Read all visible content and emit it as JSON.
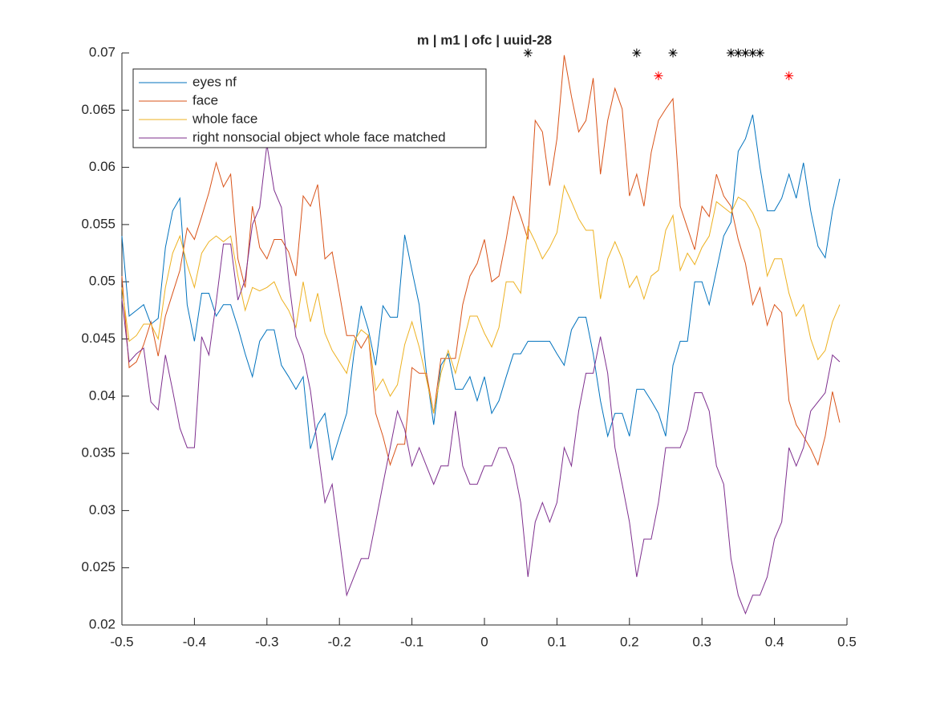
{
  "chart_data": {
    "type": "line",
    "title": "m | m1 | ofc | uuid-28",
    "x": [
      -0.5,
      -0.49,
      -0.48,
      -0.47,
      -0.46,
      -0.45,
      -0.44,
      -0.43,
      -0.42,
      -0.41,
      -0.4,
      -0.39,
      -0.38,
      -0.37,
      -0.36,
      -0.35,
      -0.34,
      -0.33,
      -0.32,
      -0.31,
      -0.3,
      -0.29,
      -0.28,
      -0.27,
      -0.26,
      -0.25,
      -0.24,
      -0.23,
      -0.22,
      -0.21,
      -0.2,
      -0.19,
      -0.18,
      -0.17,
      -0.16,
      -0.15,
      -0.14,
      -0.13,
      -0.12,
      -0.11,
      -0.1,
      -0.09,
      -0.08,
      -0.07,
      -0.06,
      -0.05,
      -0.04,
      -0.03,
      -0.02,
      -0.01,
      0,
      0.01,
      0.02,
      0.03,
      0.04,
      0.05,
      0.06,
      0.07,
      0.08,
      0.09,
      0.1,
      0.11,
      0.12,
      0.13,
      0.14,
      0.15,
      0.16,
      0.17,
      0.18,
      0.19,
      0.2,
      0.21,
      0.22,
      0.23,
      0.24,
      0.25,
      0.26,
      0.27,
      0.28,
      0.29,
      0.3,
      0.31,
      0.32,
      0.33,
      0.34,
      0.35,
      0.36,
      0.37,
      0.38,
      0.39,
      0.4,
      0.41,
      0.42,
      0.43,
      0.44,
      0.45,
      0.46,
      0.47,
      0.48,
      0.49
    ],
    "series": [
      {
        "name": "eyes nf",
        "color": "#0072bd",
        "values": [
          0.054,
          0.047,
          0.0475,
          0.048,
          0.0463,
          0.0468,
          0.053,
          0.0562,
          0.0573,
          0.048,
          0.0448,
          0.049,
          0.049,
          0.047,
          0.048,
          0.048,
          0.046,
          0.0437,
          0.0417,
          0.0448,
          0.0458,
          0.0458,
          0.0427,
          0.0417,
          0.0406,
          0.0417,
          0.0354,
          0.0375,
          0.0385,
          0.0344,
          0.0365,
          0.0385,
          0.0437,
          0.0479,
          0.0458,
          0.0427,
          0.0479,
          0.0469,
          0.0469,
          0.0541,
          0.051,
          0.048,
          0.042,
          0.0375,
          0.0427,
          0.0437,
          0.0406,
          0.0406,
          0.0417,
          0.0396,
          0.0417,
          0.0385,
          0.0396,
          0.0417,
          0.0437,
          0.0437,
          0.0448,
          0.0448,
          0.0448,
          0.0448,
          0.0437,
          0.0427,
          0.0458,
          0.0469,
          0.0469,
          0.0437,
          0.0396,
          0.0365,
          0.0385,
          0.0385,
          0.0365,
          0.0406,
          0.0406,
          0.0396,
          0.0385,
          0.0365,
          0.0427,
          0.0448,
          0.0448,
          0.05,
          0.05,
          0.048,
          0.051,
          0.054,
          0.0552,
          0.0614,
          0.0625,
          0.0646,
          0.06,
          0.0562,
          0.0562,
          0.0573,
          0.0594,
          0.0573,
          0.0604,
          0.0562,
          0.0531,
          0.0521,
          0.0562,
          0.059
        ]
      },
      {
        "name": "face",
        "color": "#d95319",
        "values": [
          0.0505,
          0.0425,
          0.043,
          0.0445,
          0.0465,
          0.0435,
          0.047,
          0.049,
          0.051,
          0.0547,
          0.0537,
          0.0557,
          0.0578,
          0.0604,
          0.0583,
          0.0594,
          0.052,
          0.0495,
          0.0566,
          0.053,
          0.052,
          0.0537,
          0.0537,
          0.0526,
          0.0505,
          0.0575,
          0.0566,
          0.0585,
          0.052,
          0.0526,
          0.049,
          0.0453,
          0.0453,
          0.0442,
          0.0453,
          0.0385,
          0.0365,
          0.034,
          0.0358,
          0.0358,
          0.0425,
          0.042,
          0.042,
          0.0385,
          0.0433,
          0.0433,
          0.0433,
          0.048,
          0.0505,
          0.0516,
          0.0537,
          0.05,
          0.0505,
          0.0537,
          0.0575,
          0.0557,
          0.0537,
          0.0641,
          0.0631,
          0.0584,
          0.0625,
          0.0698,
          0.0662,
          0.0631,
          0.0641,
          0.0678,
          0.0594,
          0.0641,
          0.0669,
          0.0651,
          0.0575,
          0.0594,
          0.0566,
          0.0613,
          0.0641,
          0.0651,
          0.066,
          0.0566,
          0.0547,
          0.0528,
          0.0566,
          0.0557,
          0.0594,
          0.0575,
          0.0566,
          0.0537,
          0.0516,
          0.048,
          0.0495,
          0.0462,
          0.048,
          0.0473,
          0.0396,
          0.0375,
          0.0365,
          0.0354,
          0.034,
          0.0365,
          0.0404,
          0.0377
        ]
      },
      {
        "name": "whole face",
        "color": "#edb120",
        "values": [
          0.0495,
          0.0448,
          0.0453,
          0.0463,
          0.0463,
          0.045,
          0.0495,
          0.0525,
          0.054,
          0.0515,
          0.0495,
          0.0525,
          0.0535,
          0.054,
          0.0535,
          0.054,
          0.0505,
          0.0475,
          0.0495,
          0.0492,
          0.0495,
          0.05,
          0.0485,
          0.0475,
          0.046,
          0.05,
          0.0465,
          0.049,
          0.0455,
          0.044,
          0.043,
          0.042,
          0.0448,
          0.0458,
          0.0453,
          0.0405,
          0.0415,
          0.04,
          0.041,
          0.0445,
          0.0465,
          0.0443,
          0.0415,
          0.0385,
          0.042,
          0.044,
          0.042,
          0.0445,
          0.047,
          0.047,
          0.0455,
          0.0443,
          0.046,
          0.05,
          0.05,
          0.049,
          0.0548,
          0.0535,
          0.052,
          0.053,
          0.0543,
          0.0584,
          0.057,
          0.0555,
          0.0545,
          0.0545,
          0.0485,
          0.052,
          0.0535,
          0.052,
          0.0495,
          0.0505,
          0.0485,
          0.0505,
          0.051,
          0.0545,
          0.0558,
          0.051,
          0.0525,
          0.0515,
          0.053,
          0.054,
          0.057,
          0.0565,
          0.056,
          0.0574,
          0.057,
          0.056,
          0.0545,
          0.0505,
          0.052,
          0.052,
          0.049,
          0.047,
          0.048,
          0.045,
          0.0432,
          0.044,
          0.0465,
          0.048
        ]
      },
      {
        "name": "right nonsocial object whole face matched",
        "color": "#7e2f8e",
        "values": [
          0.0485,
          0.043,
          0.0437,
          0.0442,
          0.0395,
          0.0388,
          0.0436,
          0.0405,
          0.0372,
          0.0355,
          0.0355,
          0.0452,
          0.0436,
          0.0482,
          0.0533,
          0.0533,
          0.0484,
          0.0502,
          0.055,
          0.0565,
          0.062,
          0.058,
          0.0565,
          0.0502,
          0.0452,
          0.0436,
          0.0405,
          0.0355,
          0.0307,
          0.0323,
          0.0275,
          0.0226,
          0.0242,
          0.0258,
          0.0258,
          0.029,
          0.0323,
          0.0355,
          0.0387,
          0.0371,
          0.0339,
          0.0355,
          0.0339,
          0.0323,
          0.0339,
          0.0339,
          0.0387,
          0.0339,
          0.0323,
          0.0323,
          0.0339,
          0.0339,
          0.0355,
          0.0355,
          0.0339,
          0.0307,
          0.0242,
          0.029,
          0.0307,
          0.029,
          0.0307,
          0.0355,
          0.0339,
          0.0387,
          0.042,
          0.042,
          0.0452,
          0.042,
          0.0355,
          0.0323,
          0.029,
          0.0242,
          0.0275,
          0.0275,
          0.0307,
          0.0355,
          0.0355,
          0.0355,
          0.0371,
          0.0403,
          0.0403,
          0.0387,
          0.0339,
          0.0323,
          0.0258,
          0.0226,
          0.021,
          0.0226,
          0.0226,
          0.0242,
          0.0275,
          0.029,
          0.0355,
          0.0339,
          0.0355,
          0.0387,
          0.0395,
          0.0403,
          0.0436,
          0.043
        ]
      }
    ],
    "markers": [
      {
        "color": "#000000",
        "x": [
          0.06,
          0.21,
          0.26,
          0.34,
          0.35,
          0.36,
          0.37,
          0.38
        ],
        "values": [
          0.07,
          0.07,
          0.07,
          0.07,
          0.07,
          0.07,
          0.07,
          0.07
        ]
      },
      {
        "color": "#ff0000",
        "x": [
          0.24,
          0.42
        ],
        "values": [
          0.068,
          0.068
        ]
      }
    ],
    "xlim": [
      -0.5,
      0.5
    ],
    "ylim": [
      0.02,
      0.07
    ],
    "xticks": [
      -0.5,
      -0.4,
      -0.3,
      -0.2,
      -0.1,
      0,
      0.1,
      0.2,
      0.3,
      0.4,
      0.5
    ],
    "yticks": [
      0.02,
      0.025,
      0.03,
      0.035,
      0.04,
      0.045,
      0.05,
      0.055,
      0.06,
      0.065,
      0.07
    ],
    "legend": "top-left"
  }
}
